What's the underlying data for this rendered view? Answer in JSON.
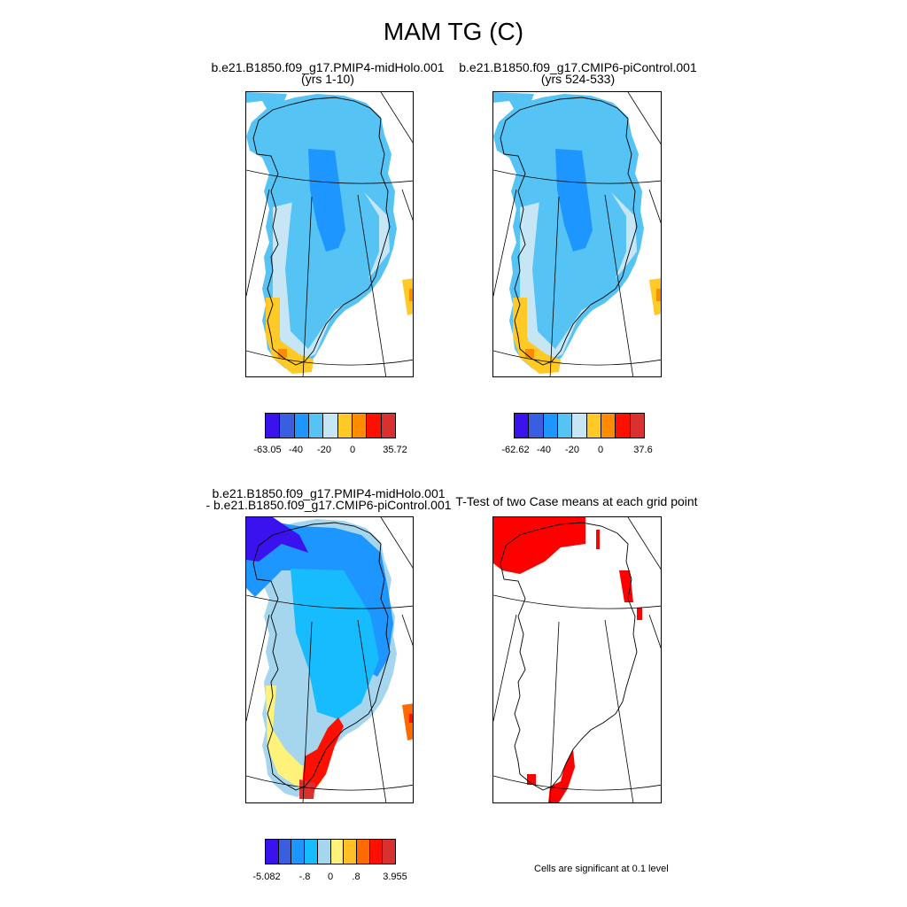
{
  "title": "MAM TG (C)",
  "panels": {
    "p1": {
      "line1": "b.e21.B1850.f09_g17.PMIP4-midHolo.001",
      "line2": "(yrs 1-10)"
    },
    "p2": {
      "line1": "b.e21.B1850.f09_g17.CMIP6-piControl.001",
      "line2": "(yrs 524-533)"
    },
    "p3": {
      "line1": "b.e21.B1850.f09_g17.PMIP4-midHolo.001",
      "line2": "- b.e21.B1850.f09_g17.CMIP6-piControl.001"
    },
    "p4": {
      "line1": "T-Test of two Case means at each grid point"
    }
  },
  "colorbars": {
    "cb1": {
      "colors": [
        "#3a12ee",
        "#3a5ee0",
        "#1e96ff",
        "#56c3f5",
        "#c6e6f6",
        "#ffc926",
        "#ff8c00",
        "#ff0f00",
        "#d93030"
      ],
      "labels": [
        "-63.05",
        "-40",
        "-20",
        "0",
        "35.72"
      ]
    },
    "cb2": {
      "colors": [
        "#3a12ee",
        "#3a5ee0",
        "#1e96ff",
        "#56c3f5",
        "#c6e6f6",
        "#ffc926",
        "#ff8c00",
        "#ff0f00",
        "#d93030"
      ],
      "labels": [
        "-62.62",
        "-40",
        "-20",
        "0",
        "37.6"
      ]
    },
    "cb3": {
      "colors": [
        "#3a12ee",
        "#3a5ee0",
        "#1e96ff",
        "#17bcff",
        "#a6d6ee",
        "#fff27a",
        "#ffc026",
        "#ff6a00",
        "#ff0f00",
        "#d93030"
      ],
      "labels": [
        "-5.082",
        "-.8",
        "0",
        ".8",
        "3.955"
      ]
    }
  },
  "note": "Cells are significant at 0.1 level"
}
